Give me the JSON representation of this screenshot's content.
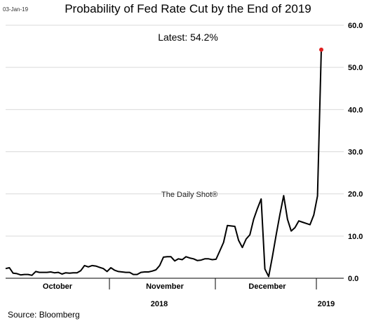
{
  "header": {
    "date_stamp": "03-Jan-19",
    "title": "Probability of Fed Rate Cut by the End of 2019",
    "latest": "Latest:  54.2%"
  },
  "watermark": "The Daily Shot®",
  "source": "Source: Bloomberg",
  "colors": {
    "line": "#000000",
    "last_point": "#e02020",
    "grid": "#d9d9d9"
  },
  "chart_data": {
    "type": "line",
    "title": "Probability of Fed Rate Cut by the End of 2019",
    "ylabel": "",
    "ylim": [
      0,
      60
    ],
    "yticks": [
      "0.0",
      "10.0",
      "20.0",
      "30.0",
      "40.0",
      "50.0",
      "60.0"
    ],
    "y_axis_side": "right",
    "grid": true,
    "x_month_labels": [
      "October",
      "November",
      "December"
    ],
    "x_year_labels": [
      "2018",
      "2019"
    ],
    "series": [
      {
        "values": [
          2.3,
          2.5,
          1.2,
          1.1,
          0.8,
          0.9,
          0.9,
          0.7,
          1.6,
          1.4,
          1.4,
          1.4,
          1.5,
          1.3,
          1.4,
          1.0,
          1.3,
          1.2,
          1.3,
          1.3,
          1.8,
          3.0,
          2.7,
          3.0,
          2.9,
          2.6,
          2.3,
          1.6,
          2.5,
          1.9,
          1.6,
          1.5,
          1.4,
          1.4,
          0.9,
          0.9,
          1.4,
          1.5,
          1.5,
          1.7,
          2.0,
          3.0,
          5.0,
          5.1,
          5.1,
          4.1,
          4.6,
          4.4,
          5.1,
          4.8,
          4.6,
          4.2,
          4.3,
          4.6,
          4.6,
          4.4,
          4.5,
          6.5,
          8.5,
          12.5,
          12.4,
          12.3,
          9.0,
          7.3,
          9.3,
          10.3,
          14.0,
          16.5,
          18.8,
          2.2,
          0.4,
          5.2,
          10.3,
          15.2,
          19.6,
          14.0,
          11.2,
          12.0,
          13.6,
          13.3,
          13.0,
          12.7,
          15.0,
          19.5,
          54.2
        ]
      }
    ]
  }
}
